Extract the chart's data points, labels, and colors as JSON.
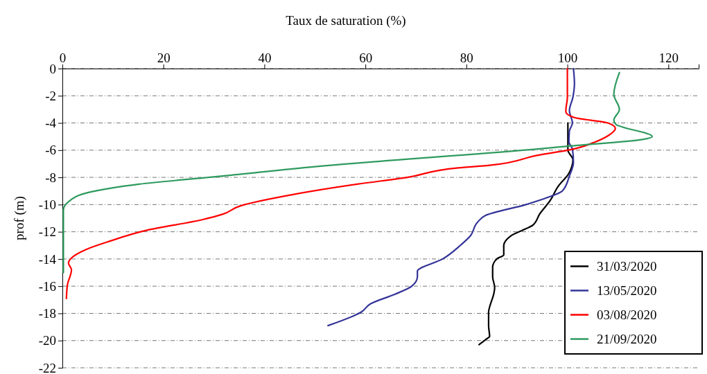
{
  "chart_data": {
    "type": "line",
    "xlabel": "Taux de saturation (%)",
    "ylabel": "prof (m)",
    "xlim": [
      0,
      126
    ],
    "xticks": [
      0,
      20,
      40,
      60,
      80,
      100,
      120
    ],
    "ylim": [
      -22,
      0
    ],
    "yticks": [
      -22,
      -20,
      -18,
      -16,
      -14,
      -12,
      -10,
      -8,
      -6,
      -4,
      -2,
      0
    ],
    "grid": "y",
    "legend": "bottom right",
    "marker": "none",
    "line_style": "solid",
    "series": [
      {
        "name": "31/03/2020",
        "color": "#000000",
        "x": [
          100.1,
          100.1,
          101.1,
          100.3,
          98.1,
          96.6,
          94.5,
          93.2,
          88.8,
          87.4,
          87.4,
          86,
          85.2,
          85.2,
          85.6,
          85.4,
          84.7,
          84.4,
          84.4,
          84.6,
          83.9,
          82.5
        ],
        "values": [
          -4,
          -6,
          -6.7,
          -7.7,
          -8.7,
          -9.7,
          -10.7,
          -11.5,
          -12.3,
          -13,
          -13.7,
          -14,
          -14.6,
          -15.3,
          -16.1,
          -16.6,
          -17.4,
          -17.9,
          -18.9,
          -19.7,
          -19.9,
          -20.3
        ]
      },
      {
        "name": "13/05/2020",
        "color": "#333399",
        "x": [
          101.2,
          101.4,
          101.1,
          100.4,
          101,
          100.4,
          100.3,
          101,
          101.2,
          100.4,
          99,
          95.9,
          91.8,
          83.8,
          82.2,
          80.8,
          78.8,
          75.3,
          70.3,
          70.3,
          69.2,
          65.8,
          61,
          59.2,
          52.6
        ],
        "values": [
          0,
          -1.1,
          -2.1,
          -3.1,
          -4,
          -4.6,
          -5.4,
          -5.9,
          -6.9,
          -7.9,
          -9,
          -9.5,
          -10,
          -10.8,
          -11.3,
          -12.3,
          -13,
          -14,
          -14.9,
          -15.3,
          -16,
          -16.6,
          -17.3,
          -17.9,
          -18.9
        ]
      },
      {
        "name": "03/08/2020",
        "color": "#ff0000",
        "x": [
          100,
          100,
          99.7,
          99.7,
          101.4,
          108,
          109.5,
          108.2,
          105.5,
          101.4,
          93.8,
          84.9,
          78.4,
          68.3,
          58.4,
          45.1,
          35.2,
          31.8,
          27.8,
          16.6,
          9.3,
          4.7,
          1.6,
          1.2,
          1.8,
          1,
          0.8
        ],
        "values": [
          0,
          -2.1,
          -3.1,
          -3.2,
          -3.6,
          -4,
          -4.4,
          -4.9,
          -5.4,
          -5.9,
          -6.4,
          -7.1,
          -7.3,
          -8,
          -8.5,
          -9.3,
          -10.1,
          -10.7,
          -11.1,
          -11.9,
          -12.7,
          -13.3,
          -14,
          -14.3,
          -14.8,
          -15.9,
          -16.9
        ]
      },
      {
        "name": "21/09/2020",
        "color": "#2e9a5e",
        "x": [
          110.3,
          109.2,
          110.3,
          109.2,
          109.6,
          116.8,
          115.1,
          100.4,
          94.5,
          50.4,
          31.8,
          15.2,
          5.3,
          1.2,
          0.2,
          0.2
        ],
        "values": [
          -0.3,
          -1.9,
          -3,
          -3.8,
          -4.1,
          -5,
          -5.2,
          -5.7,
          -5.9,
          -7.2,
          -7.9,
          -8.5,
          -9.1,
          -9.8,
          -10.4,
          -15
        ]
      }
    ]
  }
}
